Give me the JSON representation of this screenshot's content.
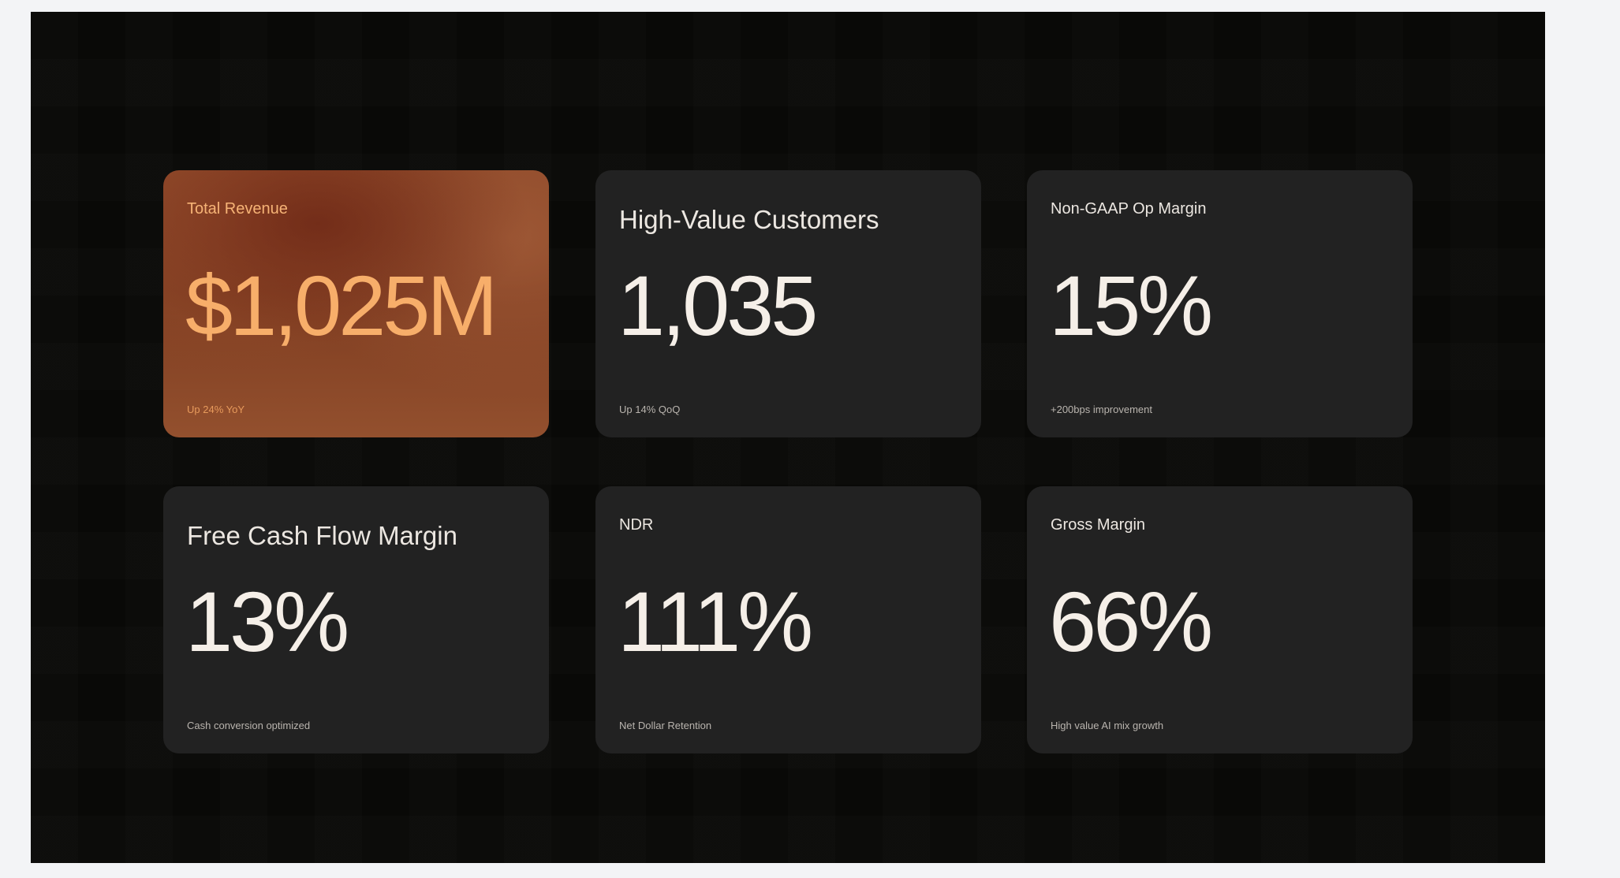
{
  "metrics": [
    {
      "label": "Total Revenue",
      "value": "$1,025M",
      "note": "Up 24% YoY",
      "accent": "#f7ae6a"
    },
    {
      "label": "High-Value Customers",
      "value": "1,035",
      "note": "Up 14% QoQ"
    },
    {
      "label": "Non-GAAP Op Margin",
      "value": "15%",
      "note": "+200bps improvement"
    },
    {
      "label": "Free Cash Flow Margin",
      "value": "13%",
      "note": "Cash conversion optimized"
    },
    {
      "label": "NDR",
      "value": "111%",
      "note": "Net Dollar Retention"
    },
    {
      "label": "Gross Margin",
      "value": "66%",
      "note": "High value AI mix growth"
    }
  ],
  "colors": {
    "slide_background": "#090907",
    "card_background": "#222222",
    "accent_card_gradient": [
      "#8a4526",
      "#7e3c20",
      "#93502e"
    ],
    "text_primary": "#f5efe8"
  }
}
